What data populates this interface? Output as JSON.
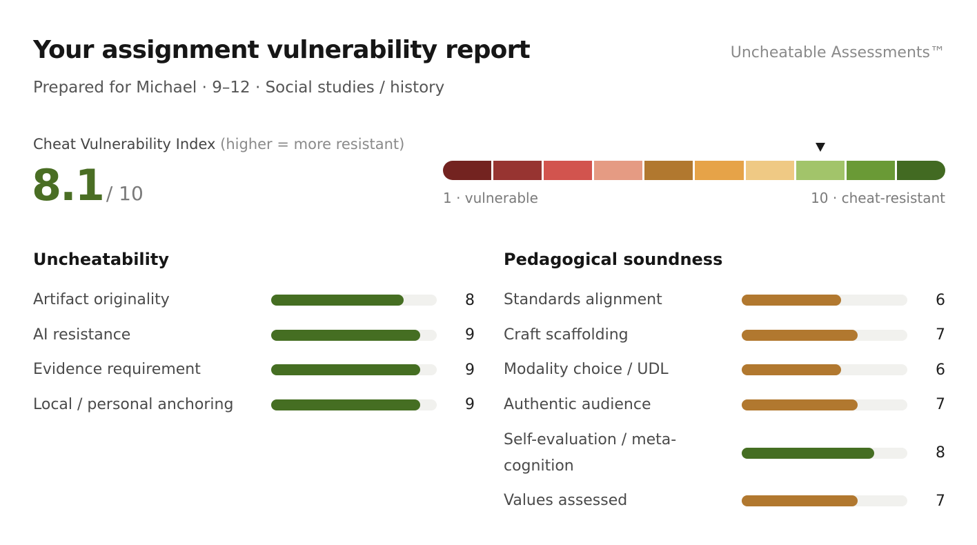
{
  "header": {
    "title": "Your assignment vulnerability report",
    "brand": "Uncheatable Assessments™",
    "subtitle": "Prepared for Michael · 9–12 · Social studies / history"
  },
  "index": {
    "label": "Cheat Vulnerability Index",
    "note": "(higher = more resistant)",
    "score": "8.1",
    "max": "/ 10",
    "scale_low_label": "1 · vulnerable",
    "scale_high_label": "10 · cheat-resistant",
    "marker_position": 8.1,
    "scale_colors": [
      "#732320",
      "#973431",
      "#d2544e",
      "#e59b83",
      "#b1782f",
      "#e6a348",
      "#efc984",
      "#a2c46a",
      "#6a9a36",
      "#426a22"
    ]
  },
  "uncheatability": {
    "title": "Uncheatability",
    "max_value": 10,
    "bar_color": "#456e22",
    "items": [
      {
        "label": "Artifact originality",
        "value": 8
      },
      {
        "label": "AI resistance",
        "value": 9
      },
      {
        "label": "Evidence requirement",
        "value": 9
      },
      {
        "label": "Local / personal anchoring",
        "value": 9
      }
    ]
  },
  "pedagogy": {
    "title": "Pedagogical soundness",
    "max_value": 10,
    "items": [
      {
        "label": "Standards alignment",
        "value": 6,
        "color": "#b1782f"
      },
      {
        "label": "Craft scaffolding",
        "value": 7,
        "color": "#b1782f"
      },
      {
        "label": "Modality choice / UDL",
        "value": 6,
        "color": "#b1782f"
      },
      {
        "label": "Authentic audience",
        "value": 7,
        "color": "#b1782f"
      },
      {
        "label": "Self-evaluation / meta-cognition",
        "value": 8,
        "color": "#456e22"
      },
      {
        "label": "Values assessed",
        "value": 7,
        "color": "#b1782f"
      }
    ]
  }
}
